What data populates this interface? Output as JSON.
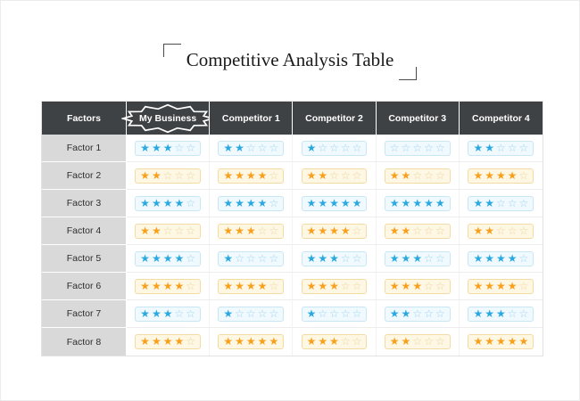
{
  "title": "Competitive Analysis Table",
  "table": {
    "columns": [
      "Factors",
      "My Business",
      "Competitor 1",
      "Competitor 2",
      "Competitor 3",
      "Competitor 4"
    ],
    "max_stars": 5,
    "rows": [
      {
        "factor": "Factor 1",
        "color": "blue",
        "ratings": [
          3,
          2,
          1,
          0,
          2
        ]
      },
      {
        "factor": "Factor 2",
        "color": "orange",
        "ratings": [
          2,
          4,
          2,
          2,
          4
        ]
      },
      {
        "factor": "Factor 3",
        "color": "blue",
        "ratings": [
          4,
          4,
          5,
          5,
          2
        ]
      },
      {
        "factor": "Factor 4",
        "color": "orange",
        "ratings": [
          2,
          3,
          4,
          2,
          2
        ]
      },
      {
        "factor": "Factor 5",
        "color": "blue",
        "ratings": [
          4,
          1,
          3,
          3,
          4
        ]
      },
      {
        "factor": "Factor 6",
        "color": "orange",
        "ratings": [
          4,
          4,
          3,
          3,
          4
        ]
      },
      {
        "factor": "Factor 7",
        "color": "blue",
        "ratings": [
          3,
          1,
          1,
          2,
          3
        ]
      },
      {
        "factor": "Factor 8",
        "color": "orange",
        "ratings": [
          4,
          5,
          3,
          2,
          5
        ]
      }
    ]
  },
  "icons": {
    "filled_star": "★",
    "empty_star": "☆"
  },
  "colors": {
    "header_bg": "#3f4245",
    "header_text": "#ffffff",
    "factor_cell_bg": "#d9d9d9",
    "star_blue": "#2aa9e0",
    "star_blue_empty": "#9fd4ee",
    "star_orange": "#f9a01b",
    "star_orange_empty": "#ecd49c"
  }
}
